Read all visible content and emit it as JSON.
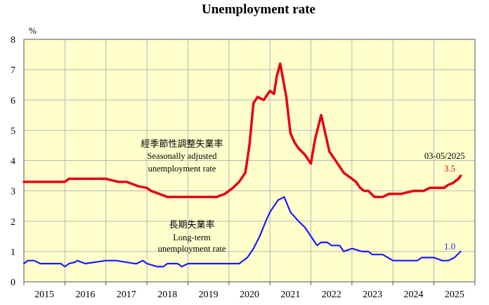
{
  "chart_data": {
    "type": "line",
    "title": "Unemployment rate",
    "yunit": "%",
    "ylim": [
      0,
      8
    ],
    "yticks": [
      "0",
      "1",
      "2",
      "3",
      "4",
      "5",
      "6",
      "7",
      "8"
    ],
    "xlim": [
      2014.5,
      2025.5
    ],
    "year_ticks": [
      "2015",
      "2016",
      "2017",
      "2018",
      "2019",
      "2020",
      "2021",
      "2022",
      "2023",
      "2024",
      "2025"
    ],
    "grid": true,
    "background_color": "#ffffcc",
    "period_label": "03-05/2025",
    "series": [
      {
        "name_zh": "經季節性調整失業率",
        "name_en_1": "Seasonally adjusted",
        "name_en_2": "unemployment rate",
        "color": "#e60012",
        "last_value_label": "3.5",
        "x": [
          2014.5,
          2015.5,
          2015.6,
          2016.3,
          2016.5,
          2016.8,
          2017.0,
          2017.2,
          2017.3,
          2017.5,
          2017.6,
          2017.8,
          2018.0,
          2018.5,
          2019.0,
          2019.2,
          2019.4,
          2019.6,
          2019.75,
          2019.9,
          2020.0,
          2020.1,
          2020.2,
          2020.35,
          2020.5,
          2020.6,
          2020.67,
          2020.75,
          2020.9,
          2021.0,
          2021.1,
          2021.2,
          2021.35,
          2021.5,
          2021.6,
          2021.75,
          2021.85,
          2021.95,
          2022.1,
          2022.3,
          2022.5,
          2022.6,
          2022.7,
          2022.8,
          2022.9,
          2023.05,
          2023.25,
          2023.4,
          2023.6,
          2023.7,
          2024.0,
          2024.25,
          2024.4,
          2024.55,
          2024.75,
          2024.85,
          2024.95,
          2025.1,
          2025.15
        ],
        "values": [
          3.3,
          3.3,
          3.4,
          3.4,
          3.4,
          3.3,
          3.3,
          3.2,
          3.15,
          3.1,
          3.0,
          2.9,
          2.8,
          2.8,
          2.8,
          2.8,
          2.9,
          3.1,
          3.3,
          3.6,
          4.5,
          5.9,
          6.1,
          6.0,
          6.3,
          6.2,
          6.8,
          7.2,
          6.1,
          4.9,
          4.6,
          4.4,
          4.2,
          3.9,
          4.7,
          5.5,
          4.9,
          4.3,
          4.0,
          3.6,
          3.4,
          3.3,
          3.1,
          3.0,
          3.0,
          2.8,
          2.8,
          2.9,
          2.9,
          2.9,
          3.0,
          3.0,
          3.1,
          3.1,
          3.1,
          3.2,
          3.25,
          3.4,
          3.5
        ]
      },
      {
        "name_zh": "長期失業率",
        "name_en_1": "Long-term",
        "name_en_2": "unemployment rate",
        "color": "#1a1aff",
        "last_value_label": "1.0",
        "x": [
          2014.5,
          2014.6,
          2014.75,
          2014.9,
          2015.4,
          2015.5,
          2015.6,
          2015.75,
          2015.8,
          2016.0,
          2016.5,
          2016.7,
          2016.75,
          2017.2,
          2017.25,
          2017.4,
          2017.5,
          2017.75,
          2017.9,
          2018.0,
          2018.25,
          2018.35,
          2018.5,
          2018.75,
          2019.0,
          2019.25,
          2019.4,
          2019.5,
          2019.75,
          2019.95,
          2020.1,
          2020.25,
          2020.4,
          2020.5,
          2020.6,
          2020.7,
          2020.85,
          2021.0,
          2021.2,
          2021.35,
          2021.5,
          2021.65,
          2021.75,
          2021.9,
          2022.0,
          2022.2,
          2022.3,
          2022.5,
          2022.75,
          2022.9,
          2023.0,
          2023.25,
          2023.5,
          2023.7,
          2023.8,
          2024.1,
          2024.2,
          2024.4,
          2024.5,
          2024.7,
          2024.85,
          2025.0,
          2025.15
        ],
        "values": [
          0.6,
          0.7,
          0.7,
          0.6,
          0.6,
          0.5,
          0.6,
          0.65,
          0.7,
          0.6,
          0.7,
          0.7,
          0.7,
          0.6,
          0.6,
          0.7,
          0.6,
          0.5,
          0.5,
          0.6,
          0.6,
          0.5,
          0.6,
          0.6,
          0.6,
          0.6,
          0.6,
          0.6,
          0.6,
          0.8,
          1.1,
          1.5,
          2.0,
          2.3,
          2.5,
          2.7,
          2.8,
          2.3,
          2.0,
          1.8,
          1.5,
          1.2,
          1.3,
          1.3,
          1.2,
          1.2,
          1.0,
          1.1,
          1.0,
          1.0,
          0.9,
          0.9,
          0.7,
          0.7,
          0.7,
          0.7,
          0.8,
          0.8,
          0.8,
          0.7,
          0.7,
          0.8,
          1.0
        ]
      }
    ]
  }
}
